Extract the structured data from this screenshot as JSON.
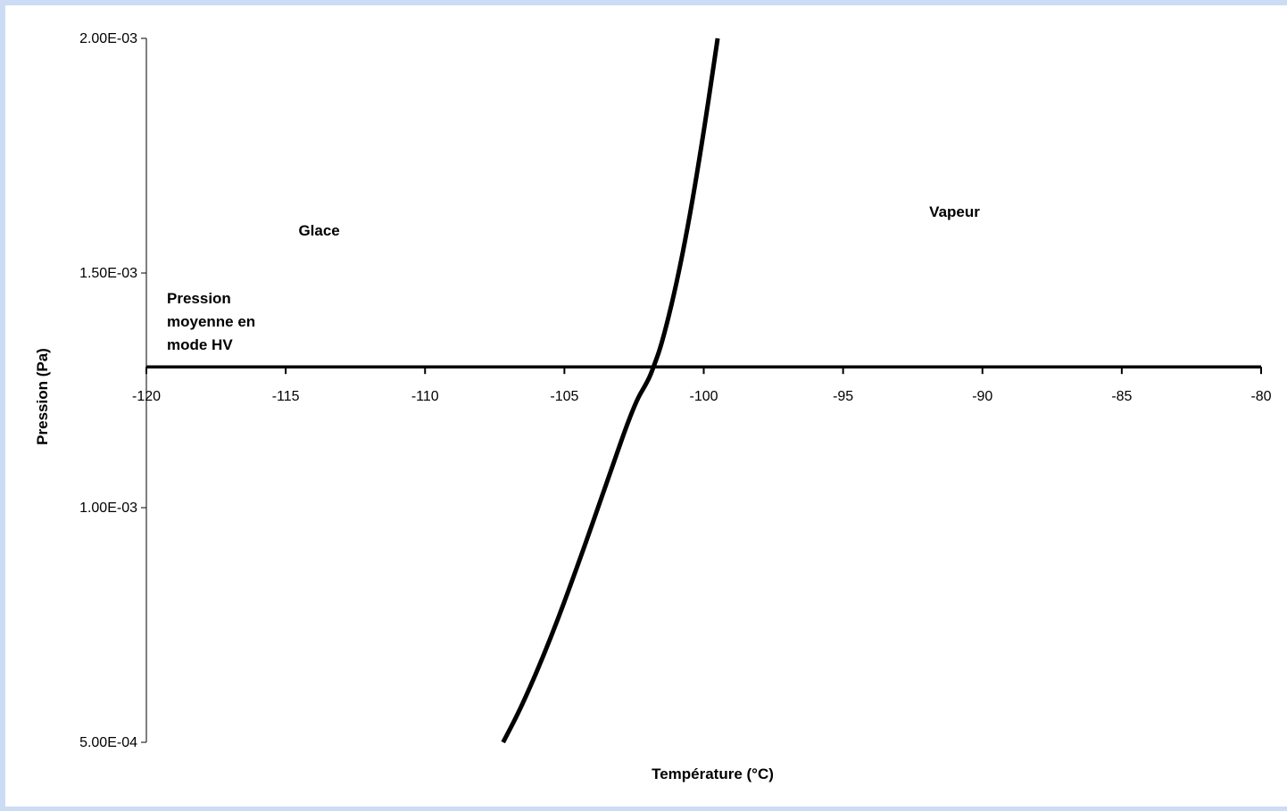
{
  "chart_data": {
    "type": "line",
    "title": "",
    "xlabel": "Température (°C)",
    "ylabel": "Pression (Pa)",
    "xlim": [
      -120,
      -80
    ],
    "ylim": [
      0.0005,
      0.002
    ],
    "x_ticks": [
      "-120",
      "-115",
      "-110",
      "-105",
      "-100",
      "-95",
      "-90",
      "-85",
      "-80"
    ],
    "y_ticks": [
      "5.00E-04",
      "1.00E-03",
      "1.50E-03",
      "2.00E-03"
    ],
    "grid": false,
    "legend": "none",
    "series": [
      {
        "color": "#000000",
        "x": [
          -107.2,
          -106.5,
          -105.5,
          -104.5,
          -103.5,
          -102.5,
          -102,
          -101.8,
          -101.5,
          -101,
          -100.5,
          -100,
          -99.5
        ],
        "y": [
          0.0005,
          0.00058,
          0.00072,
          0.00088,
          0.00105,
          0.00122,
          0.00127,
          0.0013,
          0.00135,
          0.00147,
          0.00162,
          0.0018,
          0.002
        ]
      }
    ],
    "reference_line": {
      "y": 0.0013,
      "color": "#000000",
      "label": [
        "Pression",
        "moyenne en",
        "mode  HV"
      ]
    },
    "annotations": [
      {
        "text": "Glace",
        "x": -113.8,
        "y": 0.00158
      },
      {
        "text": "Vapeur",
        "x": -91,
        "y": 0.00162
      }
    ]
  }
}
